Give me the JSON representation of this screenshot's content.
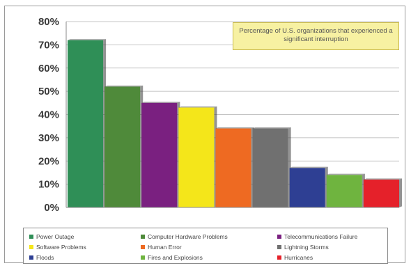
{
  "chart_data": {
    "type": "bar",
    "annotation": "Percentage of U.S. organizations that experienced a significant interruption",
    "categories": [
      "Power Outage",
      "Computer Hardware Problems",
      "Telecommunications Failure",
      "Software Problems",
      "Human Error",
      "Lightning Storms",
      "Floods",
      "Fires and Explosions",
      "Hurricanes"
    ],
    "values": [
      72,
      52,
      45,
      43,
      34,
      34,
      17,
      14,
      12
    ],
    "colors": [
      "#2f8f57",
      "#4f8a3a",
      "#7a2080",
      "#f4e61a",
      "#ee6a22",
      "#707070",
      "#2e3f93",
      "#6fb43f",
      "#e5212a"
    ],
    "ylim": [
      0,
      80
    ],
    "yticks": [
      "0%",
      "10%",
      "20%",
      "30%",
      "40%",
      "50%",
      "60%",
      "70%",
      "80%"
    ],
    "grid": true,
    "legend_position": "bottom"
  }
}
